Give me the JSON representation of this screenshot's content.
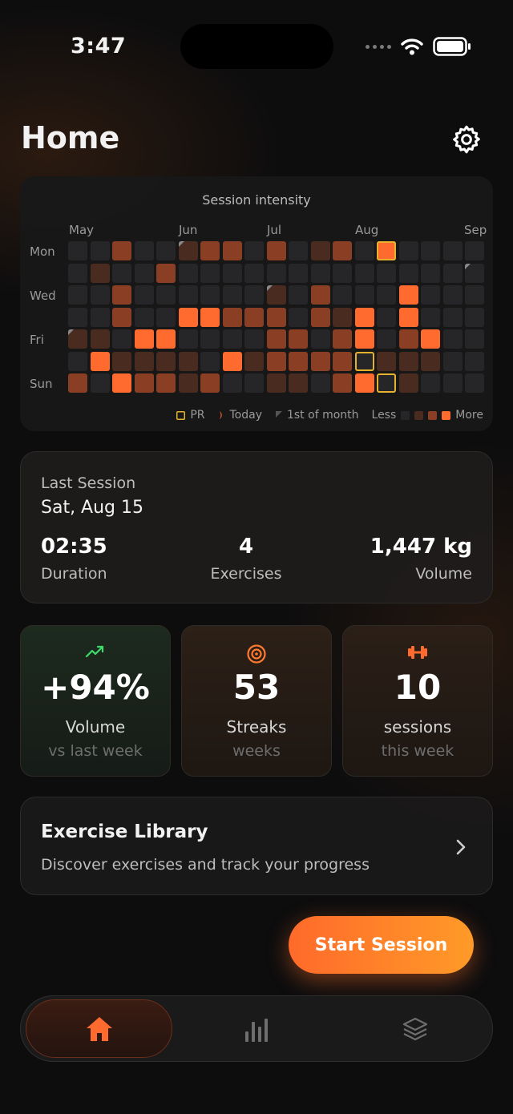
{
  "status_bar": {
    "time": "3:47"
  },
  "header": {
    "title": "Home",
    "settings_icon": "gear-icon"
  },
  "heatmap": {
    "title": "Session intensity",
    "months": [
      "May",
      "Jun",
      "Jul",
      "Aug",
      "Sep"
    ],
    "day_labels": [
      "Mon",
      "Wed",
      "Fri",
      "Sun"
    ],
    "colors": {
      "none": "#262628",
      "low": "#4a2b1f",
      "mid": "#8a3e23",
      "high": "#ff6a2e",
      "pr": "#e6b22e"
    },
    "levels": [
      [
        0,
        0,
        2,
        0,
        0,
        1,
        2,
        2,
        0,
        2,
        0,
        1,
        2,
        0,
        3,
        0,
        0,
        0,
        0
      ],
      [
        0,
        1,
        0,
        0,
        2,
        0,
        0,
        0,
        0,
        0,
        0,
        0,
        0,
        0,
        0,
        0,
        0,
        0,
        0
      ],
      [
        0,
        0,
        2,
        0,
        0,
        0,
        0,
        0,
        0,
        1,
        0,
        2,
        0,
        0,
        0,
        3,
        0,
        0,
        0
      ],
      [
        0,
        0,
        2,
        0,
        0,
        3,
        3,
        2,
        2,
        2,
        0,
        2,
        1,
        3,
        0,
        3,
        0,
        0,
        0
      ],
      [
        1,
        1,
        0,
        3,
        3,
        0,
        0,
        0,
        0,
        2,
        2,
        0,
        2,
        3,
        0,
        2,
        3,
        0,
        0
      ],
      [
        0,
        3,
        1,
        1,
        1,
        1,
        0,
        3,
        1,
        2,
        2,
        2,
        2,
        0,
        1,
        1,
        1,
        0,
        0
      ],
      [
        2,
        0,
        3,
        2,
        2,
        1,
        2,
        0,
        0,
        1,
        1,
        0,
        2,
        3,
        0,
        1,
        0,
        0,
        0
      ]
    ],
    "pr_days": [
      [
        0,
        14
      ],
      [
        5,
        13
      ],
      [
        6,
        14
      ]
    ],
    "month_start_days": [
      [
        0,
        5
      ],
      [
        2,
        9
      ],
      [
        4,
        0
      ],
      [
        1,
        18
      ]
    ],
    "legend": {
      "pr": "PR",
      "today": "Today",
      "first_of_month": "1st of month",
      "less": "Less",
      "more": "More"
    }
  },
  "last_session": {
    "label": "Last Session",
    "date": "Sat, Aug 15",
    "stats": [
      {
        "value": "02:35",
        "label": "Duration"
      },
      {
        "value": "4",
        "label": "Exercises"
      },
      {
        "value": "1,447 kg",
        "label": "Volume"
      }
    ]
  },
  "cards": [
    {
      "icon": "trending-up-icon",
      "value": "+94%",
      "label": "Volume",
      "sub": "vs last week",
      "accent": "#3ddc6a"
    },
    {
      "icon": "target-icon",
      "value": "53",
      "label": "Streaks",
      "sub": "weeks",
      "accent": "#ff7a2e"
    },
    {
      "icon": "dumbbell-icon",
      "value": "10",
      "label": "sessions",
      "sub": "this week",
      "accent": "#ff6a2e"
    }
  ],
  "library": {
    "title": "Exercise Library",
    "subtitle": "Discover exercises and track your progress"
  },
  "start_button": {
    "label": "Start Session"
  },
  "tabbar": {
    "tabs": [
      "home-icon",
      "bar-chart-icon",
      "layers-icon"
    ],
    "active": 0
  }
}
